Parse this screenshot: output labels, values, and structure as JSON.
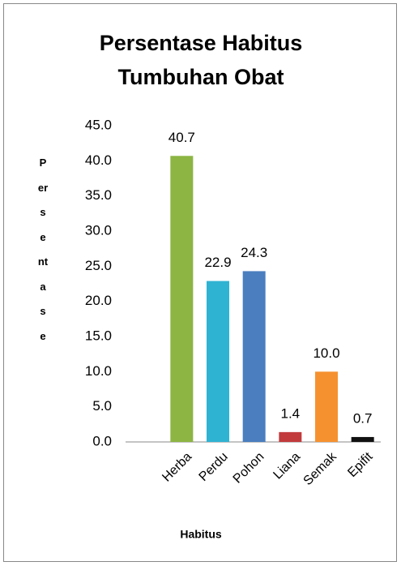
{
  "chart_data": {
    "type": "bar",
    "title": "Persentase Habitus Tumbuhan Obat",
    "x_label": "Habitus",
    "y_label": "Persentase",
    "categories": [
      "Herba",
      "Perdu",
      "Pohon",
      "Liana",
      "Semak",
      "Epifit"
    ],
    "values": [
      40.7,
      22.9,
      24.3,
      1.4,
      10.0,
      0.7
    ],
    "value_labels": [
      "40.7",
      "22.9",
      "24.3",
      "1.4",
      "10.0",
      "0.7"
    ],
    "colors": [
      "#8cb543",
      "#2fb3d3",
      "#4a7ebf",
      "#c23a3c",
      "#f6912f",
      "#111111"
    ],
    "ylim": [
      0,
      45
    ],
    "yticks": [
      {
        "value": 0,
        "label": "0.0"
      },
      {
        "value": 5,
        "label": "5.0"
      },
      {
        "value": 10,
        "label": "10.0"
      },
      {
        "value": 15,
        "label": "15.0"
      },
      {
        "value": 20,
        "label": "20.0"
      },
      {
        "value": 25,
        "label": "25.0"
      },
      {
        "value": 30,
        "label": "30.0"
      },
      {
        "value": 35,
        "label": "35.0"
      },
      {
        "value": 40,
        "label": "40.0"
      },
      {
        "value": 45,
        "label": "45.0"
      }
    ],
    "grid": false
  }
}
